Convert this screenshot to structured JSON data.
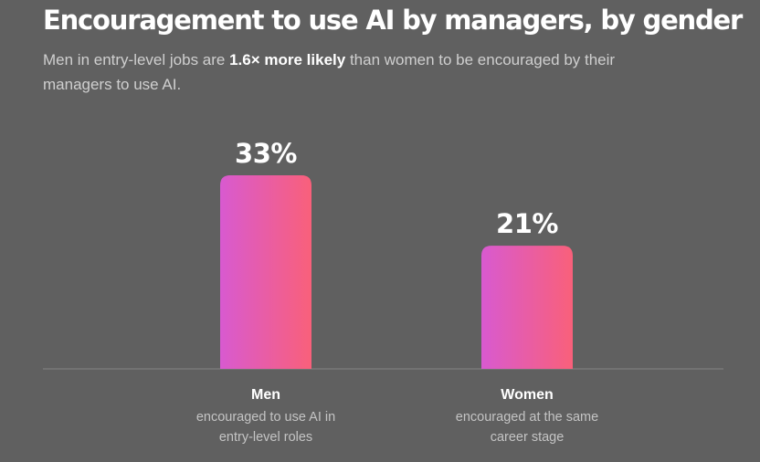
{
  "chart_data": {
    "type": "bar",
    "title": "Encouragement to use AI by managers, by gender",
    "subtitle": {
      "before": "Men in entry-level jobs are ",
      "highlight": "1.6× more likely",
      "after": " than women to be encouraged by their managers to use AI."
    },
    "categories": [
      "Men",
      "Women"
    ],
    "descriptions": [
      [
        "encouraged to use AI in",
        "entry-level roles"
      ],
      [
        "encouraged at the same",
        "career stage"
      ]
    ],
    "values": [
      33,
      21
    ],
    "value_labels": [
      "33%",
      "21%"
    ],
    "unit": "%",
    "ylim": [
      0,
      33
    ],
    "grid": false,
    "legend": "none"
  },
  "colors": {
    "background": "#606060",
    "bar_gradient_start": "#d85ad0",
    "bar_gradient_end": "#f9607a",
    "baseline": "#858585"
  }
}
